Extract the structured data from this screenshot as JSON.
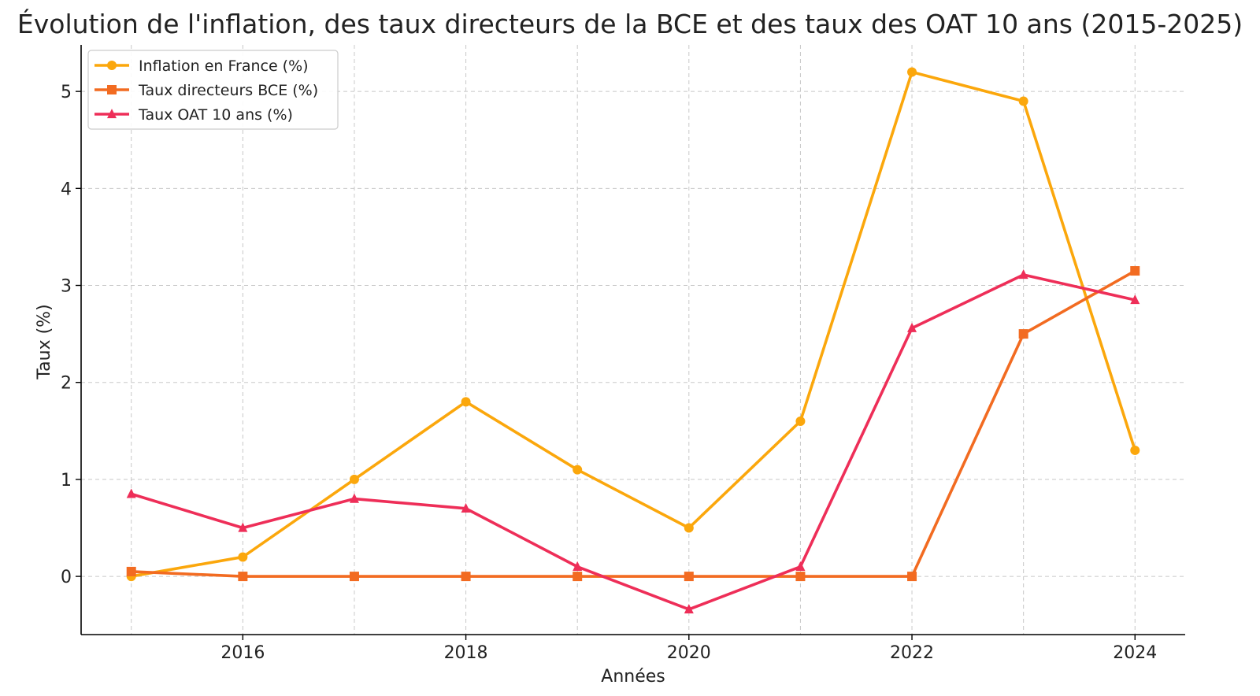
{
  "chart_data": {
    "type": "line",
    "title": "Évolution de l'inflation, des taux directeurs de la BCE et des taux des OAT 10 ans (2015-2025)",
    "xlabel": "Années",
    "ylabel": "Taux (%)",
    "x": [
      2015,
      2016,
      2017,
      2018,
      2019,
      2020,
      2021,
      2022,
      2023,
      2024
    ],
    "xlim": [
      2014.55,
      2024.45
    ],
    "ylim": [
      -0.6,
      5.48
    ],
    "xticks": [
      2016,
      2018,
      2020,
      2022,
      2024
    ],
    "yticks": [
      0,
      1,
      2,
      3,
      4,
      5
    ],
    "grid": true,
    "legend_position": "top-left",
    "series": [
      {
        "name": "Inflation en France (%)",
        "color": "#FBA70C",
        "marker": "circle",
        "values": [
          0.0,
          0.2,
          1.0,
          1.8,
          1.1,
          0.5,
          1.6,
          5.2,
          4.9,
          1.3
        ]
      },
      {
        "name": "Taux directeurs BCE (%)",
        "color": "#F26B21",
        "marker": "square",
        "values": [
          0.05,
          0.0,
          0.0,
          0.0,
          0.0,
          0.0,
          0.0,
          0.0,
          2.5,
          3.15
        ]
      },
      {
        "name": "Taux OAT 10 ans (%)",
        "color": "#EE2E58",
        "marker": "triangle",
        "values": [
          0.85,
          0.5,
          0.8,
          0.7,
          0.1,
          -0.34,
          0.1,
          2.56,
          3.11,
          2.85
        ]
      }
    ]
  }
}
